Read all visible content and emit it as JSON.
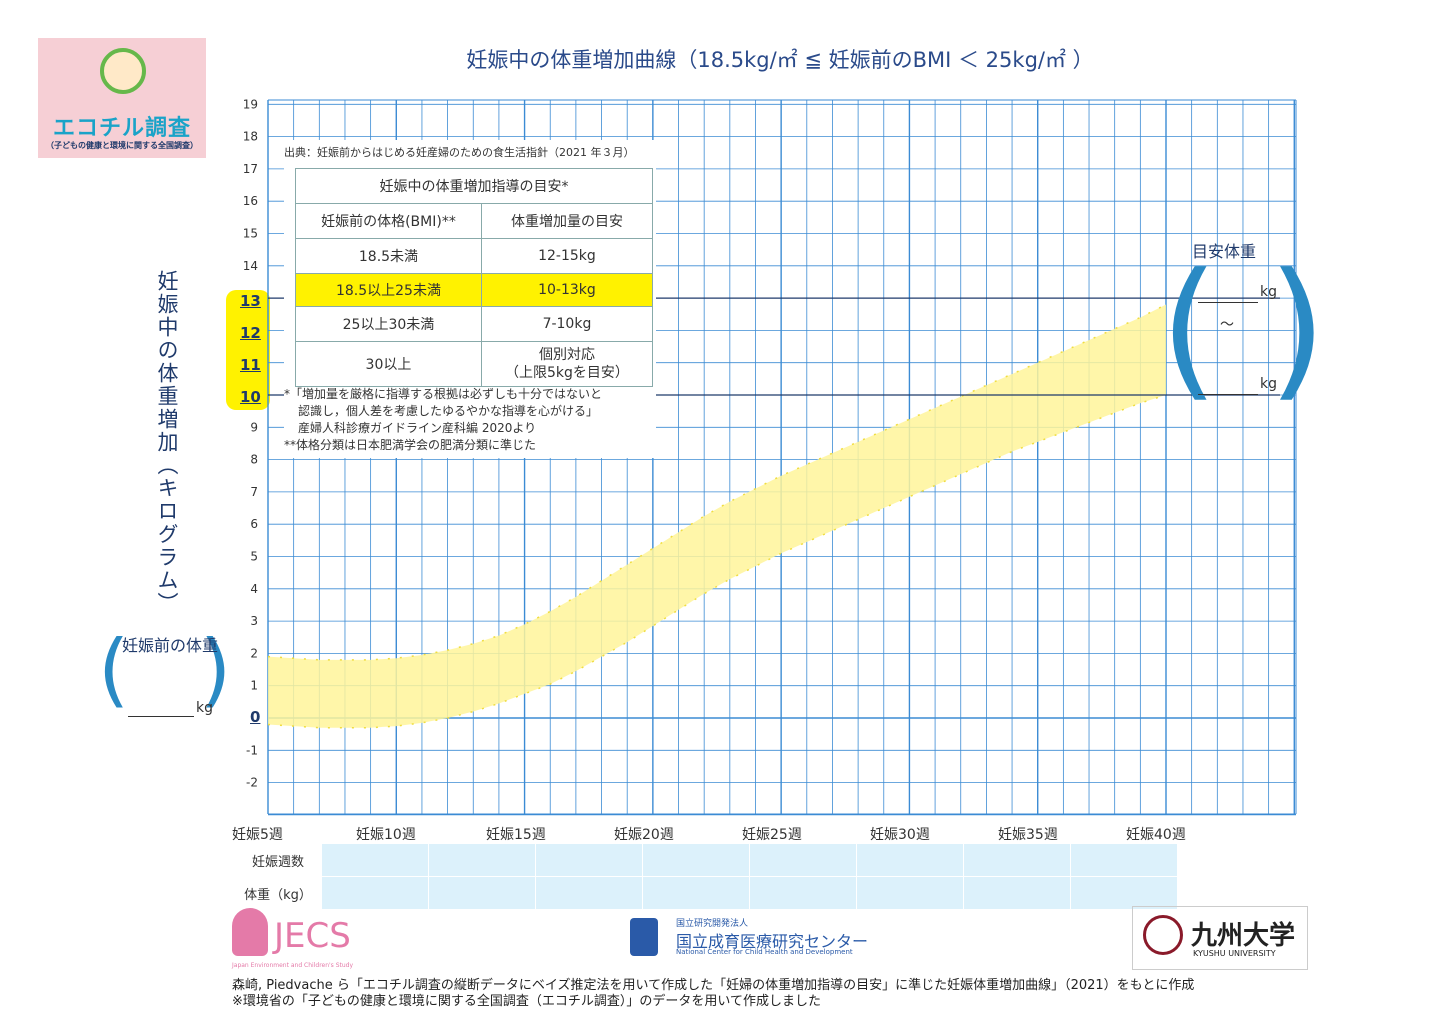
{
  "title": "妊娠中の体重増加曲線（18.5kg/㎡ ≦ 妊娠前のBMI ＜ 25kg/㎡ ）",
  "logo": {
    "name": "エコチル調査",
    "sub": "（子どもの健康と環境に関する全国調査）"
  },
  "y_axis_label": "妊娠中の体重増加（キログラム）",
  "chart_data": {
    "type": "area",
    "x_ticks": [
      "妊娠5週",
      "妊娠10週",
      "妊娠15週",
      "妊娠20週",
      "妊娠25週",
      "妊娠30週",
      "妊娠35週",
      "妊娠40週"
    ],
    "x_range": [
      5,
      40
    ],
    "ylim": [
      -3,
      19
    ],
    "y_ticks": [
      -2,
      -1,
      0,
      1,
      2,
      3,
      4,
      5,
      6,
      7,
      8,
      9,
      10,
      11,
      12,
      13,
      14,
      15,
      16,
      17,
      18,
      19
    ],
    "highlighted_y_ticks": [
      10,
      11,
      12,
      13
    ],
    "band": {
      "weeks": [
        5,
        6,
        7,
        8,
        9,
        10,
        11,
        12,
        13,
        14,
        15,
        16,
        17,
        18,
        19,
        20,
        21,
        22,
        23,
        24,
        25,
        26,
        27,
        28,
        29,
        30,
        31,
        32,
        33,
        34,
        35,
        36,
        37,
        38,
        39,
        40
      ],
      "upper": [
        1.9,
        1.85,
        1.8,
        1.8,
        1.8,
        1.85,
        1.95,
        2.1,
        2.3,
        2.55,
        2.9,
        3.3,
        3.75,
        4.25,
        4.75,
        5.25,
        5.75,
        6.25,
        6.7,
        7.1,
        7.5,
        7.85,
        8.2,
        8.55,
        8.9,
        9.25,
        9.6,
        9.95,
        10.3,
        10.65,
        11.0,
        11.35,
        11.7,
        12.05,
        12.4,
        12.8
      ],
      "lower": [
        -0.2,
        -0.25,
        -0.3,
        -0.3,
        -0.3,
        -0.25,
        -0.15,
        0.0,
        0.2,
        0.45,
        0.75,
        1.05,
        1.45,
        1.9,
        2.35,
        2.85,
        3.35,
        3.85,
        4.3,
        4.7,
        5.1,
        5.45,
        5.8,
        6.15,
        6.5,
        6.85,
        7.2,
        7.55,
        7.9,
        8.25,
        8.55,
        8.85,
        9.15,
        9.45,
        9.75,
        10.0
      ]
    },
    "reference_lines": [
      10,
      13
    ],
    "grid": true
  },
  "source": "出典：妊娠前からはじめる妊産婦のための食生活指針（2021 年３月）",
  "guide_table": {
    "caption": "妊娠中の体重増加指導の目安*",
    "headers": [
      "妊娠前の体格(BMI)**",
      "体重増加量の目安"
    ],
    "rows": [
      [
        "18.5未満",
        "12-15kg"
      ],
      [
        "18.5以上25未満",
        "10-13kg"
      ],
      [
        "25以上30未満",
        "7-10kg"
      ],
      [
        "30以上",
        "個別対応\n（上限5kgを目安）"
      ]
    ]
  },
  "footnotes": [
    "*「増加量を厳格に指導する根拠は必ずしも十分ではないと",
    "認識し，個人差を考慮したゆるやかな指導を心がける」",
    "産婦人科診療ガイドライン産科編 2020より",
    "**体格分類は日本肥満学会の肥満分類に準じた"
  ],
  "prepregnancy_weight": {
    "label": "妊娠前の体重",
    "unit": "kg"
  },
  "target_weight": {
    "label": "目安体重",
    "unit": "kg",
    "tilde": "～"
  },
  "record_table": {
    "row1": "妊娠週数",
    "row2": "体重（kg）",
    "cells": 8
  },
  "logos": {
    "jecs": "JECS",
    "jecs_sub": "Japan Environment and Children's Study",
    "ncchd_small": "国立研究開発法人",
    "ncchd": "国立成育医療研究センター",
    "ncchd_en": "National Center for Child Health and Development",
    "kyushu": "九州大学",
    "kyushu_en": "KYUSHU UNIVERSITY"
  },
  "credit1": "森崎, Piedvache ら「エコチル調査の縦断データにベイズ推定法を用いて作成した「妊婦の体重増加指導の目安」に準じた妊娠体重増加曲線」（2021）をもとに作成",
  "credit2": "※環境省の「子どもの健康と環境に関する全国調査（エコチル調査）」のデータを用いて作成しました",
  "colors": {
    "band": "#fff59a",
    "grid": "#3b8bd4",
    "highlight": "#fff200",
    "paren": "#2a8ac4"
  }
}
